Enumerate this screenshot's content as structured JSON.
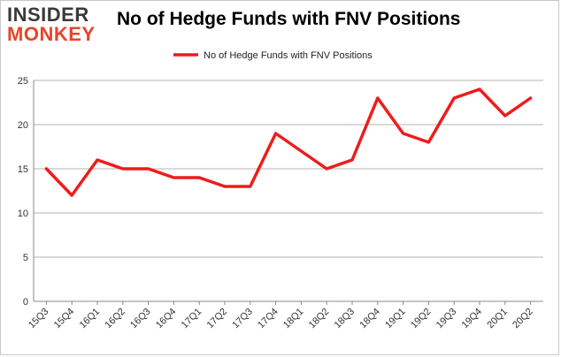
{
  "logo": {
    "line1": "INSIDER",
    "line2": "MONKEY"
  },
  "colors": {
    "series": "#ee1c1c",
    "grid": "#b3b3b3",
    "logo_dark": "#3a3a3a",
    "logo_accent": "#e8442a"
  },
  "chart_data": {
    "type": "line",
    "title": "No of Hedge Funds with FNV Positions",
    "xlabel": "",
    "ylabel": "",
    "ylim": [
      0,
      25
    ],
    "yticks": [
      0,
      5,
      10,
      15,
      20,
      25
    ],
    "grid": true,
    "legend_position": "top-center",
    "categories": [
      "15Q3",
      "15Q4",
      "16Q1",
      "16Q2",
      "16Q3",
      "16Q4",
      "17Q1",
      "17Q2",
      "17Q3",
      "17Q4",
      "18Q1",
      "18Q2",
      "18Q3",
      "18Q4",
      "19Q1",
      "19Q2",
      "19Q3",
      "19Q4",
      "20Q1",
      "20Q2"
    ],
    "series": [
      {
        "name": "No of Hedge Funds with FNV Positions",
        "values": [
          15,
          12,
          16,
          15,
          15,
          14,
          14,
          13,
          13,
          19,
          17,
          15,
          16,
          23,
          19,
          18,
          23,
          24,
          21,
          23
        ]
      }
    ]
  }
}
